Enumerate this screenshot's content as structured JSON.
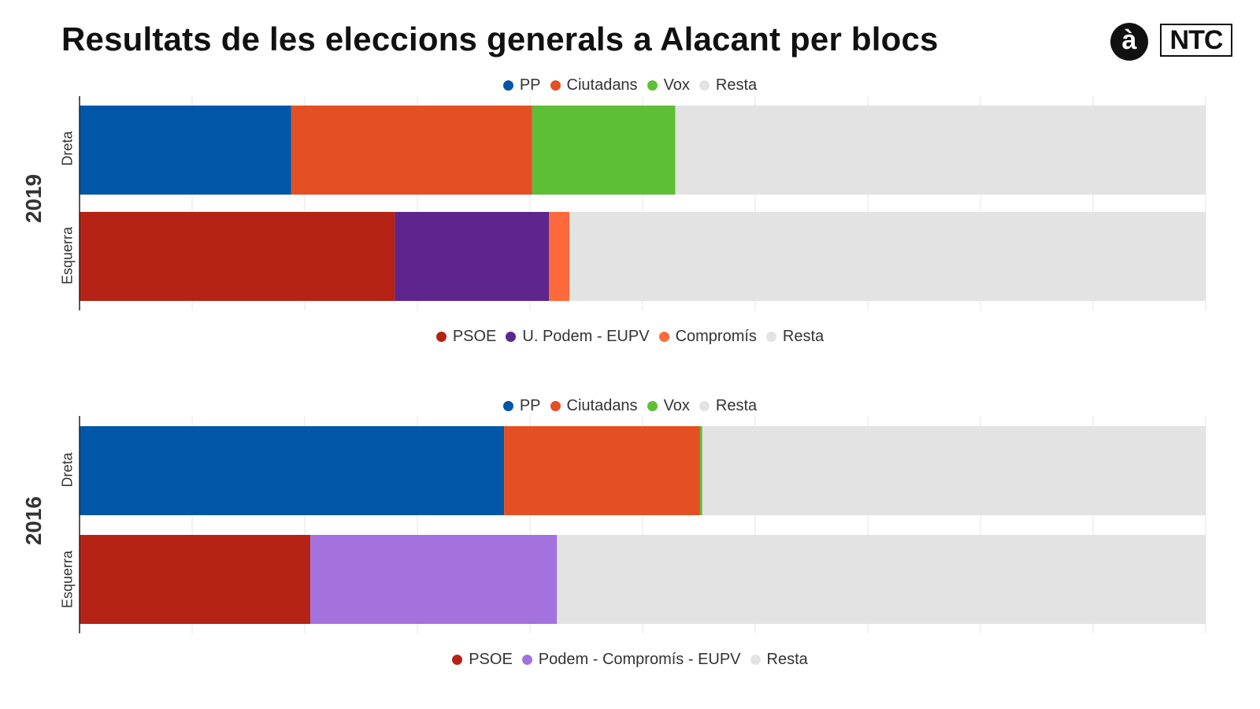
{
  "title": "Resultats de les eleccions generals a Alacant per blocs",
  "logos": {
    "circle": "à",
    "box": "NTC"
  },
  "colors": {
    "PP": "#0057A8",
    "Ciutadans": "#E44F24",
    "Vox": "#5CBF36",
    "Resta": "#E3E3E3",
    "PSOE": "#B52317",
    "U. Podem - EUPV": "#5E268C",
    "Compromís": "#FF6A3C",
    "Podem - Compromís - EUPV": "#A472DE"
  },
  "legends": {
    "right_2019": [
      "PP",
      "Ciutadans",
      "Vox",
      "Resta"
    ],
    "left_2019": [
      "PSOE",
      "U. Podem - EUPV",
      "Compromís",
      "Resta"
    ],
    "right_2016": [
      "PP",
      "Ciutadans",
      "Vox",
      "Resta"
    ],
    "left_2016": [
      "PSOE",
      "Podem - Compromís - EUPV",
      "Resta"
    ]
  },
  "chart_data": [
    {
      "type": "bar",
      "orientation": "horizontal",
      "stacked": true,
      "title": "2019",
      "xlim": [
        0,
        100
      ],
      "grid": true,
      "categories": [
        "Dreta",
        "Esquerra"
      ],
      "stacks": [
        {
          "category": "Dreta",
          "segments": [
            {
              "name": "PP",
              "value": 18.8
            },
            {
              "name": "Ciutadans",
              "value": 21.4
            },
            {
              "name": "Vox",
              "value": 12.7
            },
            {
              "name": "Resta",
              "value": 47.1
            }
          ]
        },
        {
          "category": "Esquerra",
          "segments": [
            {
              "name": "PSOE",
              "value": 28.0
            },
            {
              "name": "U. Podem - EUPV",
              "value": 13.7
            },
            {
              "name": "Compromís",
              "value": 1.8
            },
            {
              "name": "Resta",
              "value": 56.5
            }
          ]
        }
      ]
    },
    {
      "type": "bar",
      "orientation": "horizontal",
      "stacked": true,
      "title": "2016",
      "xlim": [
        0,
        100
      ],
      "grid": true,
      "categories": [
        "Dreta",
        "Esquerra"
      ],
      "stacks": [
        {
          "category": "Dreta",
          "segments": [
            {
              "name": "PP",
              "value": 37.7
            },
            {
              "name": "Ciutadans",
              "value": 17.4
            },
            {
              "name": "Vox",
              "value": 0.2
            },
            {
              "name": "Resta",
              "value": 44.7
            }
          ]
        },
        {
          "category": "Esquerra",
          "segments": [
            {
              "name": "PSOE",
              "value": 20.5
            },
            {
              "name": "Podem - Compromís - EUPV",
              "value": 21.9
            },
            {
              "name": "Resta",
              "value": 57.6
            }
          ]
        }
      ]
    }
  ]
}
